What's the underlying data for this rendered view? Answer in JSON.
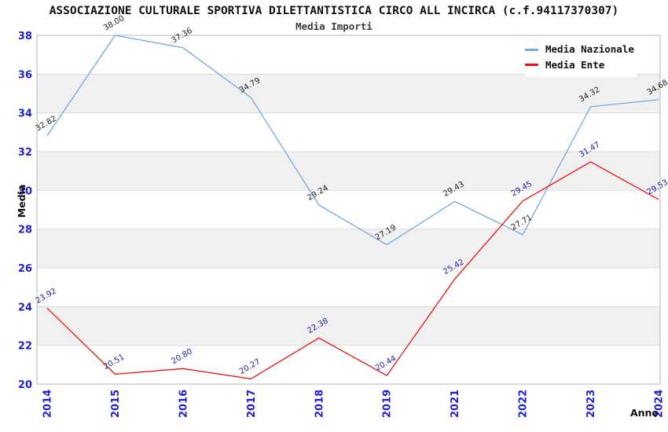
{
  "header": {
    "title": "ASSOCIAZIONE CULTURALE SPORTIVA DILETTANTISTICA CIRCO ALL INCIRCA (c.f.94117370307)",
    "subtitle": "Media Importi"
  },
  "colors": {
    "tick_label": "#2222cc",
    "band_gray": "#f0f0f0",
    "band_white": "#ffffff",
    "gridline": "#dcdcdc",
    "plot_border": "#b3b3b3",
    "national_line": "#74a9dd",
    "entity_line": "#ee1111",
    "national_point_label": "#222222",
    "entity_point_label": "#222299"
  },
  "chart_data": {
    "type": "line",
    "title": "ASSOCIAZIONE CULTURALE SPORTIVA DILETTANTISTICA CIRCO ALL INCIRCA (c.f.94117370307)",
    "subtitle": "Media Importi",
    "xlabel": "Anno",
    "ylabel": "Media",
    "x": [
      "2014",
      "2015",
      "2016",
      "2017",
      "2018",
      "2019",
      "2021",
      "2022",
      "2023",
      "2024"
    ],
    "series": [
      {
        "name": "Media Nazionale",
        "color": "#74a9dd",
        "label_color": "#222222",
        "values": [
          32.82,
          38.0,
          37.36,
          34.79,
          29.24,
          27.19,
          29.43,
          27.71,
          34.32,
          34.68
        ]
      },
      {
        "name": "Media Ente",
        "color": "#ee1111",
        "label_color": "#222299",
        "values": [
          23.92,
          20.51,
          20.8,
          20.27,
          22.38,
          20.44,
          25.42,
          29.45,
          31.47,
          29.53
        ]
      }
    ],
    "ylim": [
      20,
      38
    ],
    "ytick_step": 2,
    "yticks": [
      20,
      22,
      24,
      26,
      28,
      30,
      32,
      34,
      36,
      38
    ],
    "grid": "horizontal-bands",
    "legend_position": "top-right",
    "point_labels": "on",
    "point_label_rotation_deg": -30,
    "x_tick_rotation_deg": -90
  }
}
